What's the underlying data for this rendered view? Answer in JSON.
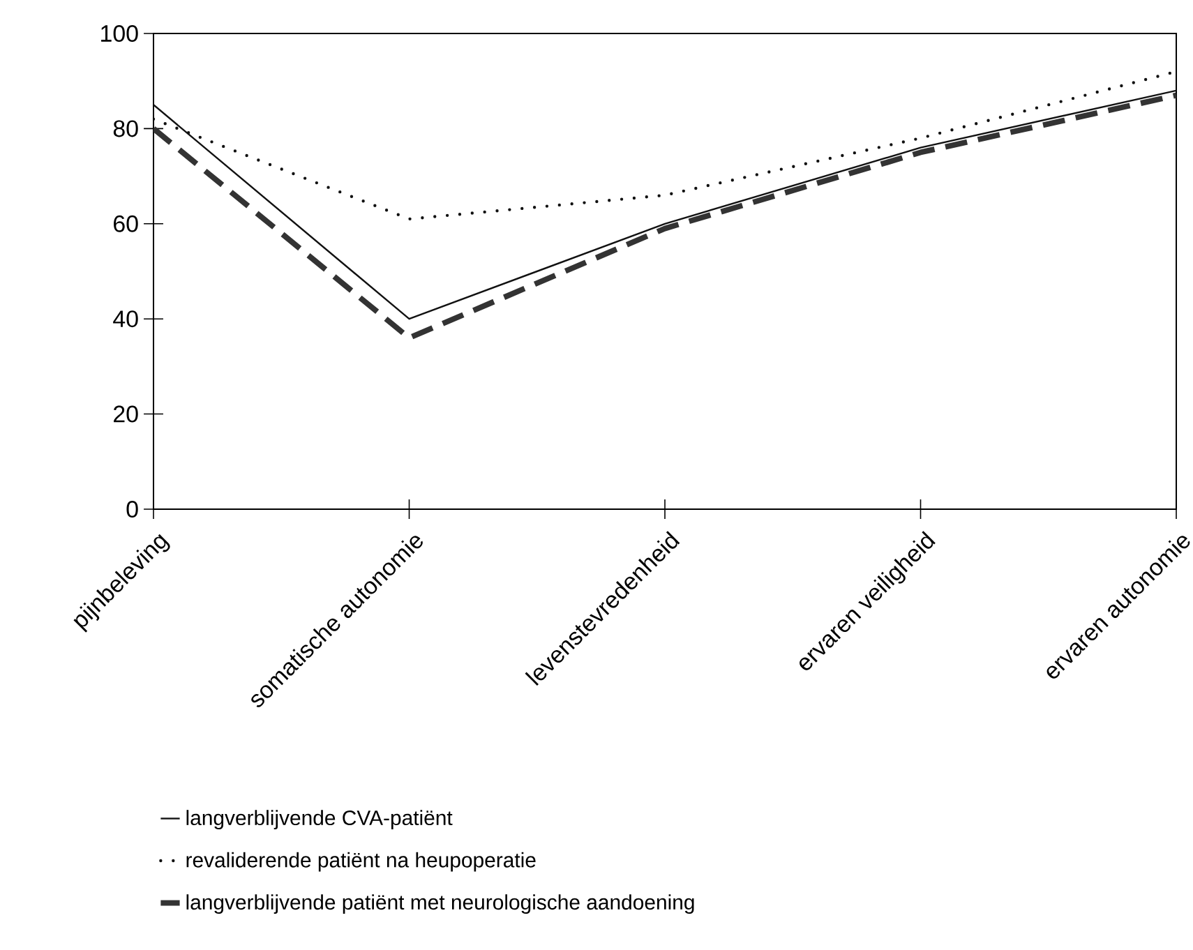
{
  "chart_data": {
    "type": "line",
    "categories": [
      "pijnbeleving",
      "somatische autonomie",
      "levenstevredenheid",
      "ervaren veiligheid",
      "ervaren autonomie"
    ],
    "ylim": [
      0,
      100
    ],
    "yticks": [
      0,
      20,
      40,
      60,
      80,
      100
    ],
    "legend": "bottom",
    "marker": "none",
    "series": [
      {
        "name": "langverblijvende CVA-patiënt",
        "color": "#111111",
        "line_style": "solid",
        "values": [
          85,
          40,
          60,
          76,
          88
        ]
      },
      {
        "name": "revaliderende patiënt na heupoperatie",
        "color": "#111111",
        "line_style": "dotted",
        "values": [
          82,
          61,
          66,
          78,
          92
        ]
      },
      {
        "name": "langverblijvende patiënt met neurologische aandoening",
        "color": "#333333",
        "line_style": "dashed",
        "values": [
          80,
          36,
          59,
          75,
          87
        ]
      }
    ]
  }
}
